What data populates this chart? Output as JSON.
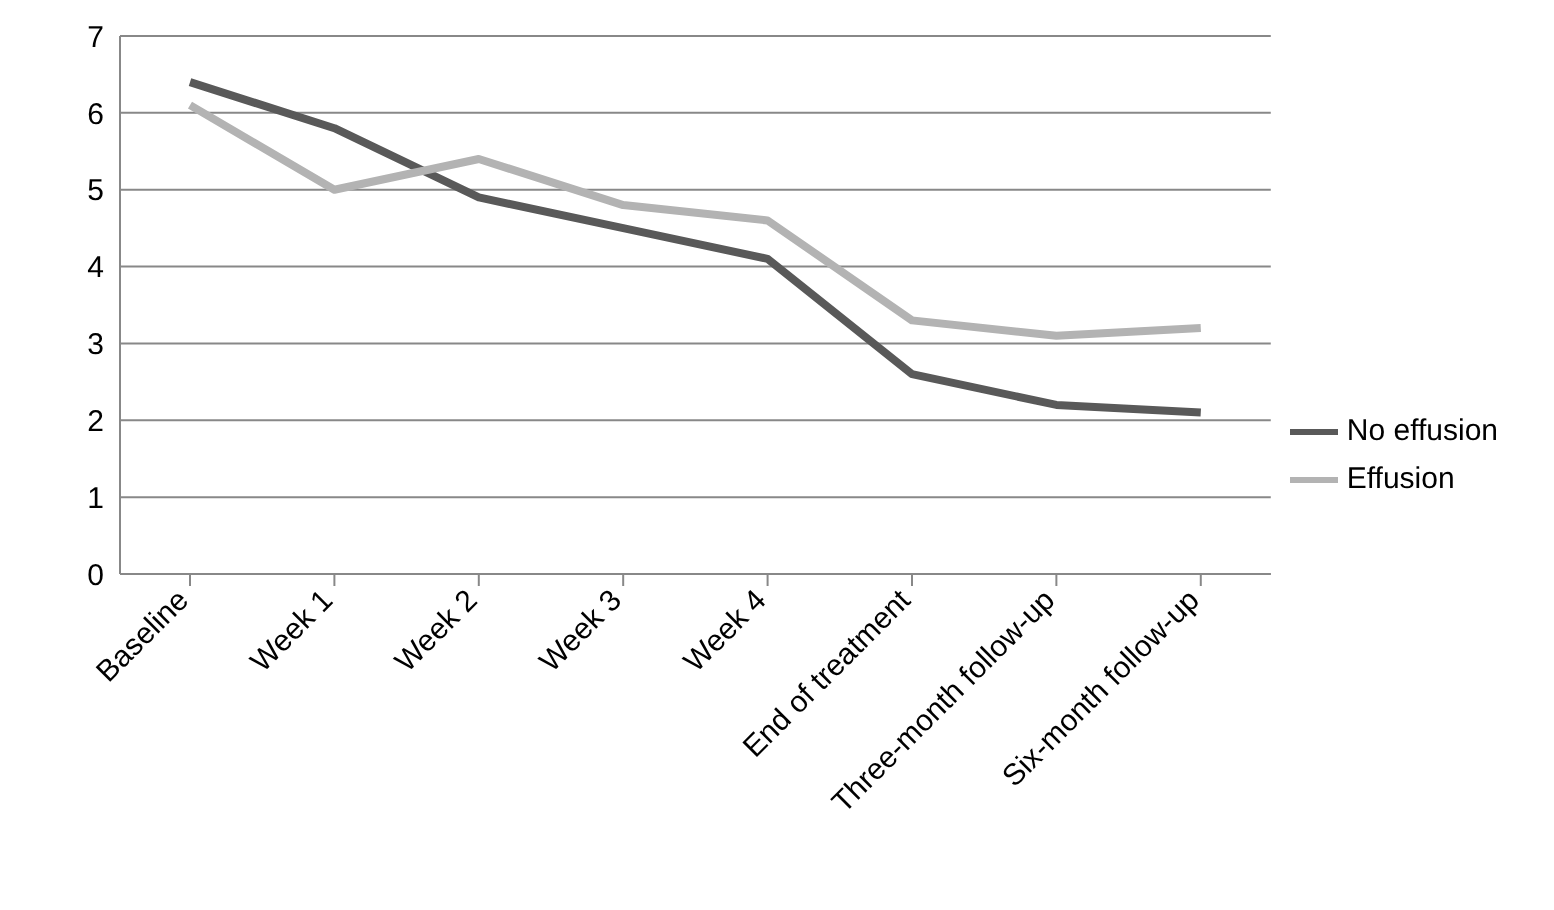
{
  "chart_data": {
    "type": "line",
    "categories": [
      "Baseline",
      "Week 1",
      "Week 2",
      "Week 3",
      "Week 4",
      "End of treatment",
      "Three-month follow-up",
      "Six-month follow-up"
    ],
    "series": [
      {
        "name": "No effusion",
        "color": "#595959",
        "values": [
          6.4,
          5.8,
          4.9,
          4.5,
          4.1,
          2.6,
          2.2,
          2.1
        ]
      },
      {
        "name": "Effusion",
        "color": "#b3b3b3",
        "values": [
          6.1,
          5.0,
          5.4,
          4.8,
          4.6,
          3.3,
          3.1,
          3.2
        ]
      }
    ],
    "ylim": [
      0,
      7
    ],
    "yticks": [
      0,
      1,
      2,
      3,
      4,
      5,
      6,
      7
    ],
    "grid": "y",
    "legend": "right",
    "marker": "none",
    "line_style": "solid"
  }
}
